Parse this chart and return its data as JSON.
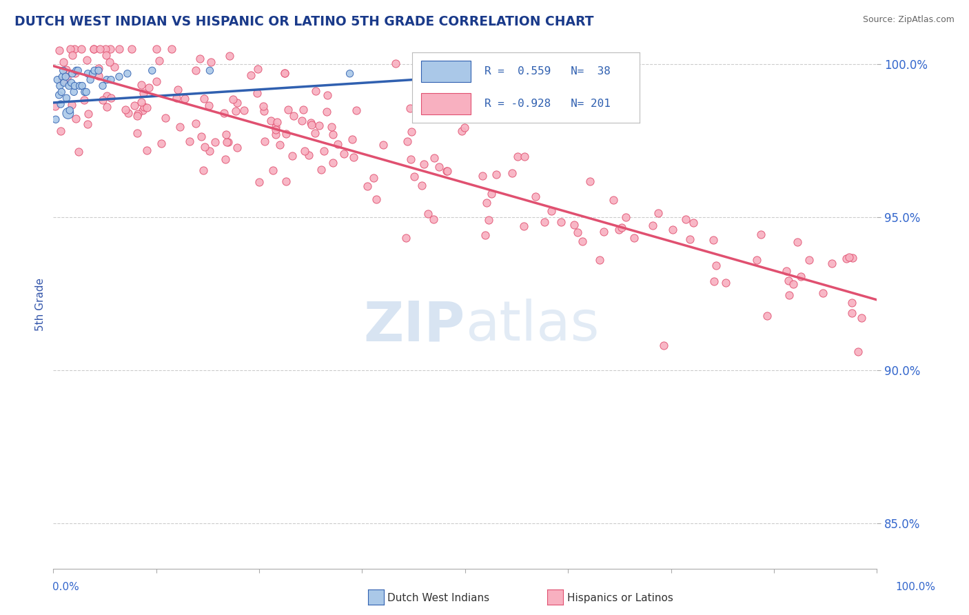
{
  "title": "DUTCH WEST INDIAN VS HISPANIC OR LATINO 5TH GRADE CORRELATION CHART",
  "source": "Source: ZipAtlas.com",
  "ylabel": "5th Grade",
  "xlim": [
    0.0,
    1.0
  ],
  "ylim": [
    0.835,
    1.008
  ],
  "ytick_values": [
    0.85,
    0.9,
    0.95,
    1.0
  ],
  "xtick_values": [
    0.0,
    0.125,
    0.25,
    0.375,
    0.5,
    0.625,
    0.75,
    0.875,
    1.0
  ],
  "blue_color": "#aac8e8",
  "pink_color": "#f8b0c0",
  "blue_line_color": "#3060b0",
  "pink_line_color": "#e05070",
  "title_color": "#1a3a8a",
  "source_color": "#666666",
  "axis_label_color": "#3355aa",
  "tick_label_color": "#3366cc",
  "grid_color": "#cccccc",
  "background_color": "#ffffff",
  "blue_scatter_x": [
    0.003,
    0.005,
    0.007,
    0.008,
    0.009,
    0.01,
    0.011,
    0.012,
    0.013,
    0.015,
    0.016,
    0.018,
    0.019,
    0.02,
    0.022,
    0.023,
    0.025,
    0.026,
    0.028,
    0.03,
    0.032,
    0.035,
    0.038,
    0.04,
    0.042,
    0.045,
    0.048,
    0.05,
    0.055,
    0.06,
    0.065,
    0.07,
    0.08,
    0.09,
    0.12,
    0.19,
    0.36,
    0.61
  ],
  "blue_scatter_y": [
    0.982,
    0.995,
    0.99,
    0.993,
    0.987,
    0.991,
    0.996,
    0.998,
    0.994,
    0.996,
    0.989,
    0.984,
    0.993,
    0.985,
    0.994,
    0.997,
    0.991,
    0.993,
    0.998,
    0.998,
    0.993,
    0.993,
    0.991,
    0.991,
    0.997,
    0.995,
    0.997,
    0.998,
    0.998,
    0.993,
    0.995,
    0.995,
    0.996,
    0.997,
    0.998,
    0.998,
    0.997,
    0.998
  ],
  "blue_scatter_size": [
    55,
    55,
    55,
    55,
    55,
    55,
    55,
    55,
    55,
    55,
    55,
    130,
    55,
    55,
    55,
    55,
    55,
    55,
    55,
    55,
    55,
    55,
    55,
    55,
    55,
    55,
    55,
    55,
    55,
    55,
    55,
    55,
    55,
    55,
    55,
    55,
    55,
    55
  ],
  "blue_line_x": [
    0.0,
    0.64
  ],
  "blue_line_y": [
    0.9875,
    0.9985
  ],
  "pink_line_x": [
    0.0,
    1.0
  ],
  "pink_line_y": [
    0.9995,
    0.923
  ],
  "pink_scatter_seed": 42
}
